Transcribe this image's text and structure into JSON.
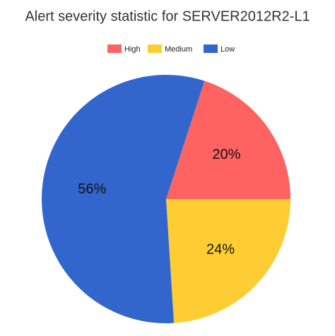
{
  "chart_data": {
    "type": "pie",
    "title": "Alert severity statistic for SERVER2012R2-L1",
    "series": [
      {
        "name": "High",
        "color": "#fe6361",
        "values": [
          20
        ]
      },
      {
        "name": "Medium",
        "color": "#fecd33",
        "values": [
          24
        ]
      },
      {
        "name": "Low",
        "color": "#3366cc",
        "values": [
          56
        ]
      }
    ],
    "value_labels": [
      "20%",
      "24%",
      "56%"
    ],
    "legend": "top"
  }
}
